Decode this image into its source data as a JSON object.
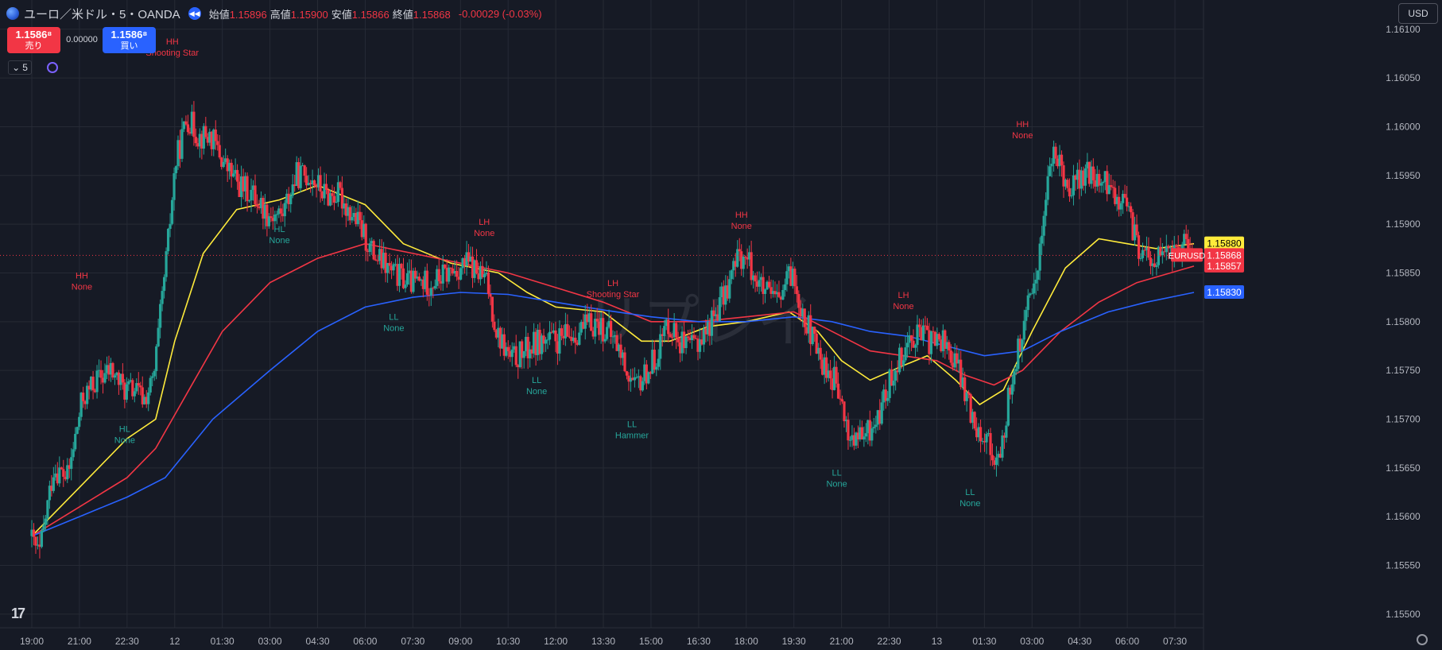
{
  "header": {
    "symbol_title": "ユーロ／米ドル・5・OANDA",
    "ohlc": [
      {
        "label": "始値",
        "value": "1.15896"
      },
      {
        "label": "高値",
        "value": "1.15900"
      },
      {
        "label": "安値",
        "value": "1.15866"
      },
      {
        "label": "終値",
        "value": "1.15868"
      }
    ],
    "change": "-0.00029 (-0.03%)"
  },
  "trade": {
    "sell_price": "1.1586⁸",
    "sell_label": "売り",
    "spread": "0.00000",
    "buy_price": "1.1586⁸",
    "buy_label": "買い"
  },
  "timeframe": "5",
  "currency": "USD",
  "watermark": "リプレイ",
  "colors": {
    "background": "#161a25",
    "grid": "#262a35",
    "up": "#26a69a",
    "down": "#f23645",
    "ema_fast": "#ffeb3b",
    "ema_mid": "#f23645",
    "ema_slow": "#2962ff",
    "label_high": "#f23645",
    "label_low": "#26a69a"
  },
  "chart_data": {
    "type": "candlestick",
    "symbol": "EURUSD",
    "x_ticks": [
      "19:00",
      "21:00",
      "22:30",
      "12",
      "01:30",
      "03:00",
      "04:30",
      "06:00",
      "07:30",
      "09:00",
      "10:30",
      "12:00",
      "13:30",
      "15:00",
      "16:30",
      "18:00",
      "19:30",
      "21:00",
      "22:30",
      "13",
      "01:30",
      "03:00",
      "04:30",
      "06:00",
      "07:30"
    ],
    "y_ticks": [
      "1.16100",
      "1.16050",
      "1.16000",
      "1.15950",
      "1.15900",
      "1.15850",
      "1.15800",
      "1.15750",
      "1.15700",
      "1.15650",
      "1.15600",
      "1.15550",
      "1.15500"
    ],
    "ylim": [
      1.15486,
      1.1613
    ],
    "xlim": [
      0,
      24.6
    ],
    "grid": true,
    "last_price": 1.15868,
    "price_labels": [
      {
        "value": "1.15880",
        "color": "#ffeb3b",
        "text_color": "#000000"
      },
      {
        "value": "1.15868",
        "color": "#f23645",
        "text_color": "#ffffff"
      },
      {
        "value": "1.15857",
        "color": "#f23645",
        "text_color": "#ffffff"
      },
      {
        "value": "1.15830",
        "color": "#2962ff",
        "text_color": "#ffffff"
      }
    ],
    "price_line_label": "EURUSD",
    "price_path": [
      [
        0.0,
        1.1558
      ],
      [
        0.2,
        1.1556
      ],
      [
        0.5,
        1.1565
      ],
      [
        0.8,
        1.1564
      ],
      [
        1.1,
        1.1572
      ],
      [
        1.4,
        1.1574
      ],
      [
        1.7,
        1.1575
      ],
      [
        2.0,
        1.1573
      ],
      [
        2.2,
        1.1573
      ],
      [
        2.4,
        1.1572
      ],
      [
        2.6,
        1.1574
      ],
      [
        2.9,
        1.1588
      ],
      [
        3.05,
        1.1596
      ],
      [
        3.3,
        1.1601
      ],
      [
        3.55,
        1.1599
      ],
      [
        3.8,
        1.1599
      ],
      [
        4.1,
        1.1596
      ],
      [
        4.4,
        1.1594
      ],
      [
        4.7,
        1.1593
      ],
      [
        5.0,
        1.1591
      ],
      [
        5.3,
        1.1591
      ],
      [
        5.6,
        1.1595
      ],
      [
        5.9,
        1.1595
      ],
      [
        6.2,
        1.1593
      ],
      [
        6.5,
        1.1593
      ],
      [
        6.9,
        1.159
      ],
      [
        7.2,
        1.1587
      ],
      [
        7.6,
        1.1585
      ],
      [
        8.0,
        1.1584
      ],
      [
        8.4,
        1.1584
      ],
      [
        8.8,
        1.1585
      ],
      [
        9.2,
        1.1586
      ],
      [
        9.6,
        1.1584
      ],
      [
        9.8,
        1.1579
      ],
      [
        10.1,
        1.1576
      ],
      [
        10.4,
        1.1577
      ],
      [
        10.7,
        1.1578
      ],
      [
        11.1,
        1.1578
      ],
      [
        11.5,
        1.1579
      ],
      [
        11.9,
        1.158
      ],
      [
        12.3,
        1.1578
      ],
      [
        12.7,
        1.1573
      ],
      [
        13.1,
        1.1576
      ],
      [
        13.4,
        1.158
      ],
      [
        13.8,
        1.1577
      ],
      [
        14.2,
        1.1579
      ],
      [
        14.6,
        1.1583
      ],
      [
        14.9,
        1.1587
      ],
      [
        15.1,
        1.1586
      ],
      [
        15.4,
        1.1583
      ],
      [
        15.7,
        1.1582
      ],
      [
        16.0,
        1.1585
      ],
      [
        16.3,
        1.158
      ],
      [
        16.6,
        1.1576
      ],
      [
        16.9,
        1.1574
      ],
      [
        17.2,
        1.1568
      ],
      [
        17.5,
        1.1568
      ],
      [
        17.8,
        1.157
      ],
      [
        18.2,
        1.1576
      ],
      [
        18.6,
        1.1579
      ],
      [
        18.9,
        1.1578
      ],
      [
        19.2,
        1.1578
      ],
      [
        19.5,
        1.1575
      ],
      [
        19.8,
        1.157
      ],
      [
        20.1,
        1.1568
      ],
      [
        20.35,
        1.1565
      ],
      [
        20.6,
        1.1574
      ],
      [
        20.9,
        1.158
      ],
      [
        21.2,
        1.1587
      ],
      [
        21.4,
        1.1596
      ],
      [
        21.55,
        1.1597
      ],
      [
        21.8,
        1.1594
      ],
      [
        22.2,
        1.1595
      ],
      [
        22.6,
        1.1594
      ],
      [
        23.0,
        1.1592
      ],
      [
        23.25,
        1.1588
      ],
      [
        23.5,
        1.1586
      ],
      [
        23.8,
        1.1587
      ],
      [
        24.0,
        1.1587
      ],
      [
        24.2,
        1.1588
      ],
      [
        24.4,
        1.15868
      ]
    ],
    "series": [
      {
        "name": "",
        "color": "#ffeb3b",
        "points": [
          [
            0.0,
            1.1558
          ],
          [
            1.0,
            1.1563
          ],
          [
            2.0,
            1.1568
          ],
          [
            2.6,
            1.157
          ],
          [
            3.0,
            1.1578
          ],
          [
            3.6,
            1.1587
          ],
          [
            4.3,
            1.15915
          ],
          [
            5.2,
            1.15925
          ],
          [
            6.0,
            1.1594
          ],
          [
            7.0,
            1.1592
          ],
          [
            7.8,
            1.1588
          ],
          [
            8.8,
            1.1586
          ],
          [
            9.8,
            1.1585
          ],
          [
            10.4,
            1.1583
          ],
          [
            11.0,
            1.15815
          ],
          [
            12.0,
            1.1581
          ],
          [
            12.8,
            1.1578
          ],
          [
            13.4,
            1.1578
          ],
          [
            14.2,
            1.15795
          ],
          [
            15.0,
            1.158
          ],
          [
            15.9,
            1.1581
          ],
          [
            16.5,
            1.1579
          ],
          [
            17.0,
            1.1576
          ],
          [
            17.6,
            1.1574
          ],
          [
            18.3,
            1.15755
          ],
          [
            18.8,
            1.15765
          ],
          [
            19.4,
            1.1574
          ],
          [
            19.9,
            1.15715
          ],
          [
            20.4,
            1.1573
          ],
          [
            21.0,
            1.1579
          ],
          [
            21.7,
            1.15855
          ],
          [
            22.4,
            1.15885
          ],
          [
            23.0,
            1.1588
          ],
          [
            23.6,
            1.15875
          ],
          [
            24.4,
            1.1588
          ]
        ]
      },
      {
        "name": "",
        "color": "#f23645",
        "points": [
          [
            0.0,
            1.1558
          ],
          [
            1.0,
            1.1561
          ],
          [
            2.0,
            1.1564
          ],
          [
            2.6,
            1.1567
          ],
          [
            3.3,
            1.1573
          ],
          [
            4.0,
            1.1579
          ],
          [
            5.0,
            1.1584
          ],
          [
            6.0,
            1.15865
          ],
          [
            7.0,
            1.1588
          ],
          [
            8.0,
            1.1587
          ],
          [
            9.0,
            1.1586
          ],
          [
            10.0,
            1.1585
          ],
          [
            11.0,
            1.15835
          ],
          [
            12.0,
            1.1582
          ],
          [
            13.0,
            1.158
          ],
          [
            14.0,
            1.158
          ],
          [
            15.0,
            1.15805
          ],
          [
            16.0,
            1.1581
          ],
          [
            16.8,
            1.1579
          ],
          [
            17.6,
            1.1577
          ],
          [
            18.3,
            1.15765
          ],
          [
            19.0,
            1.1576
          ],
          [
            19.6,
            1.15745
          ],
          [
            20.2,
            1.15735
          ],
          [
            20.8,
            1.1575
          ],
          [
            21.6,
            1.1579
          ],
          [
            22.4,
            1.1582
          ],
          [
            23.2,
            1.1584
          ],
          [
            24.4,
            1.15857
          ]
        ]
      },
      {
        "name": "",
        "color": "#2962ff",
        "points": [
          [
            0.0,
            1.1558
          ],
          [
            1.0,
            1.156
          ],
          [
            2.0,
            1.1562
          ],
          [
            2.8,
            1.1564
          ],
          [
            3.8,
            1.157
          ],
          [
            5.0,
            1.1575
          ],
          [
            6.0,
            1.1579
          ],
          [
            7.0,
            1.15815
          ],
          [
            8.0,
            1.15825
          ],
          [
            9.0,
            1.1583
          ],
          [
            10.0,
            1.15828
          ],
          [
            11.0,
            1.1582
          ],
          [
            12.0,
            1.15812
          ],
          [
            13.0,
            1.15805
          ],
          [
            14.0,
            1.158
          ],
          [
            15.0,
            1.158
          ],
          [
            16.0,
            1.15805
          ],
          [
            16.8,
            1.158
          ],
          [
            17.6,
            1.1579
          ],
          [
            18.4,
            1.15785
          ],
          [
            19.2,
            1.15775
          ],
          [
            20.0,
            1.15765
          ],
          [
            20.8,
            1.1577
          ],
          [
            21.6,
            1.1579
          ],
          [
            22.6,
            1.1581
          ],
          [
            23.4,
            1.1582
          ],
          [
            24.4,
            1.1583
          ]
        ]
      }
    ],
    "annotations": [
      {
        "x": 1.05,
        "y": 1.1582,
        "side": "above",
        "kind": "high",
        "line1": "HH",
        "line2": "None"
      },
      {
        "x": 1.95,
        "y": 1.157,
        "side": "below",
        "kind": "low",
        "line1": "HL",
        "line2": "None"
      },
      {
        "x": 2.95,
        "y": 1.1606,
        "side": "above",
        "kind": "high",
        "line1": "HH",
        "line2": "Shooting Star"
      },
      {
        "x": 5.2,
        "y": 1.15905,
        "side": "below",
        "kind": "low",
        "line1": "HL",
        "line2": "None"
      },
      {
        "x": 7.6,
        "y": 1.15815,
        "side": "below",
        "kind": "low",
        "line1": "LL",
        "line2": "None"
      },
      {
        "x": 9.5,
        "y": 1.15875,
        "side": "above",
        "kind": "high",
        "line1": "LH",
        "line2": "None"
      },
      {
        "x": 10.6,
        "y": 1.1575,
        "side": "below",
        "kind": "low",
        "line1": "LL",
        "line2": "None"
      },
      {
        "x": 12.2,
        "y": 1.15812,
        "side": "above",
        "kind": "high",
        "line1": "LH",
        "line2": "Shooting Star"
      },
      {
        "x": 12.6,
        "y": 1.15705,
        "side": "below",
        "kind": "low",
        "line1": "LL",
        "line2": "Hammer"
      },
      {
        "x": 14.9,
        "y": 1.15882,
        "side": "above",
        "kind": "high",
        "line1": "HH",
        "line2": "None"
      },
      {
        "x": 16.9,
        "y": 1.15655,
        "side": "below",
        "kind": "low",
        "line1": "LL",
        "line2": "None"
      },
      {
        "x": 18.3,
        "y": 1.158,
        "side": "above",
        "kind": "high",
        "line1": "LH",
        "line2": "None"
      },
      {
        "x": 19.7,
        "y": 1.15635,
        "side": "below",
        "kind": "low",
        "line1": "LL",
        "line2": "None"
      },
      {
        "x": 20.8,
        "y": 1.15975,
        "side": "above",
        "kind": "high",
        "line1": "HH",
        "line2": "None"
      }
    ]
  }
}
